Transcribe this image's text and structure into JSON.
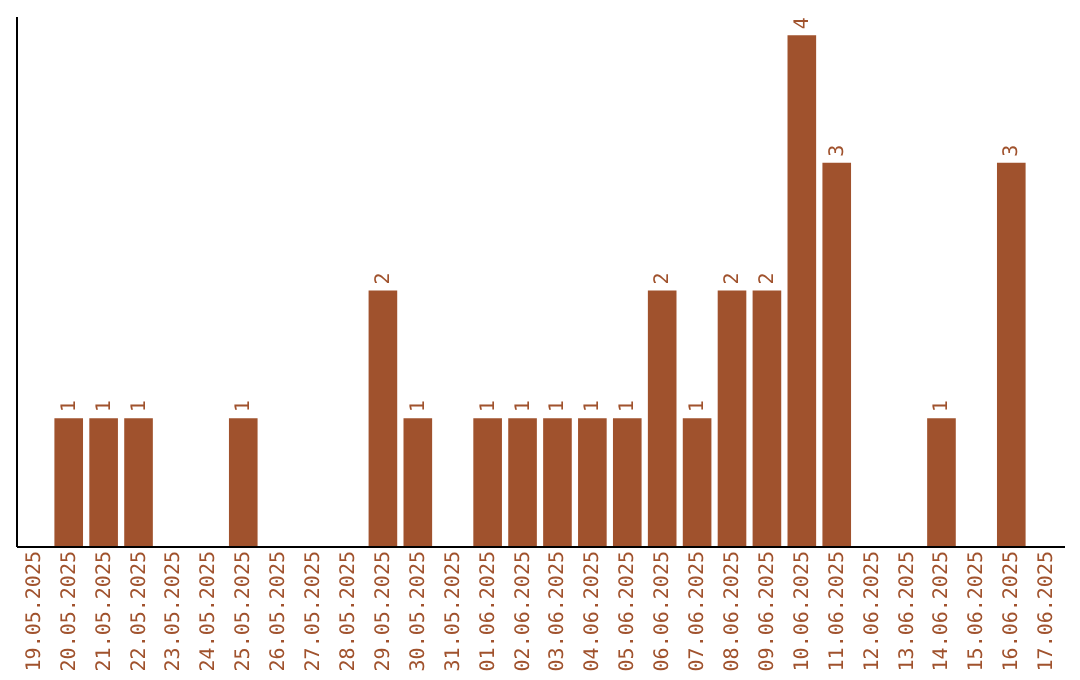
{
  "chart_data": {
    "type": "bar",
    "categories": [
      "19.05.2025",
      "20.05.2025",
      "21.05.2025",
      "22.05.2025",
      "23.05.2025",
      "24.05.2025",
      "25.05.2025",
      "26.05.2025",
      "27.05.2025",
      "28.05.2025",
      "29.05.2025",
      "30.05.2025",
      "31.05.2025",
      "01.06.2025",
      "02.06.2025",
      "03.06.2025",
      "04.06.2025",
      "05.06.2025",
      "06.06.2025",
      "07.06.2025",
      "08.06.2025",
      "09.06.2025",
      "10.06.2025",
      "11.06.2025",
      "12.06.2025",
      "13.06.2025",
      "14.06.2025",
      "15.06.2025",
      "16.06.2025",
      "17.06.2025"
    ],
    "values": [
      null,
      1,
      1,
      1,
      null,
      null,
      1,
      null,
      null,
      null,
      2,
      1,
      null,
      1,
      1,
      1,
      1,
      1,
      2,
      1,
      2,
      2,
      4,
      3,
      null,
      null,
      1,
      null,
      3,
      null
    ],
    "color": "#a0522d",
    "ylim": [
      0,
      4.15
    ],
    "data_labels": true,
    "grid": false,
    "tick_labels": "x"
  }
}
